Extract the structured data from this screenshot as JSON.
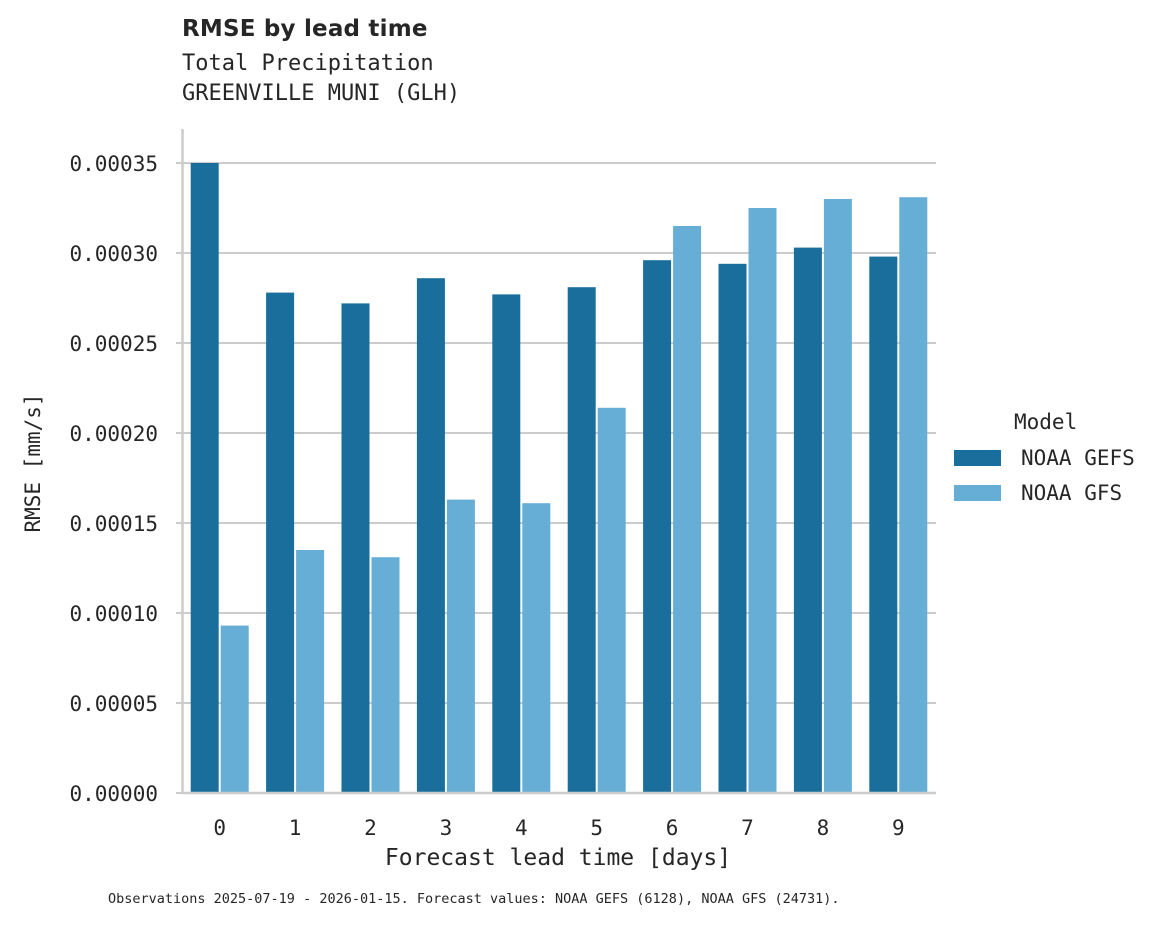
{
  "header": {
    "title": "RMSE by lead time",
    "subtitle_line1": "Total Precipitation",
    "subtitle_line2": "GREENVILLE MUNI (GLH)"
  },
  "axes": {
    "xlabel": "Forecast lead time [days]",
    "ylabel": "RMSE [mm/s]",
    "yticks": [
      "0.00000",
      "0.00005",
      "0.00010",
      "0.00015",
      "0.00020",
      "0.00025",
      "0.00030",
      "0.00035"
    ],
    "xticks": [
      "0",
      "1",
      "2",
      "3",
      "4",
      "5",
      "6",
      "7",
      "8",
      "9"
    ]
  },
  "legend": {
    "title": "Model",
    "items": [
      {
        "label": "NOAA GEFS",
        "color": "#1a6e9c"
      },
      {
        "label": "NOAA GFS",
        "color": "#67aed6"
      }
    ]
  },
  "footnote": "Observations 2025-07-19 - 2026-01-15. Forecast values: NOAA GEFS (6128), NOAA GFS (24731).",
  "chart_data": {
    "type": "bar",
    "title": "RMSE by lead time",
    "subtitle": "Total Precipitation / GREENVILLE MUNI (GLH)",
    "xlabel": "Forecast lead time [days]",
    "ylabel": "RMSE [mm/s]",
    "categories": [
      "0",
      "1",
      "2",
      "3",
      "4",
      "5",
      "6",
      "7",
      "8",
      "9"
    ],
    "series": [
      {
        "name": "NOAA GEFS",
        "color": "#1a6e9c",
        "values": [
          0.00035,
          0.000278,
          0.000272,
          0.000286,
          0.000277,
          0.000281,
          0.000296,
          0.000294,
          0.000303,
          0.000298
        ]
      },
      {
        "name": "NOAA GFS",
        "color": "#67aed6",
        "values": [
          9.3e-05,
          0.000135,
          0.000131,
          0.000163,
          0.000161,
          0.000214,
          0.000315,
          0.000325,
          0.00033,
          0.000331
        ]
      }
    ],
    "ylim": [
      0,
      0.00037
    ],
    "yticks": [
      0,
      5e-05,
      0.0001,
      0.00015,
      0.0002,
      0.00025,
      0.0003,
      0.00035
    ],
    "grid": "horizontal",
    "legend_position": "right"
  }
}
